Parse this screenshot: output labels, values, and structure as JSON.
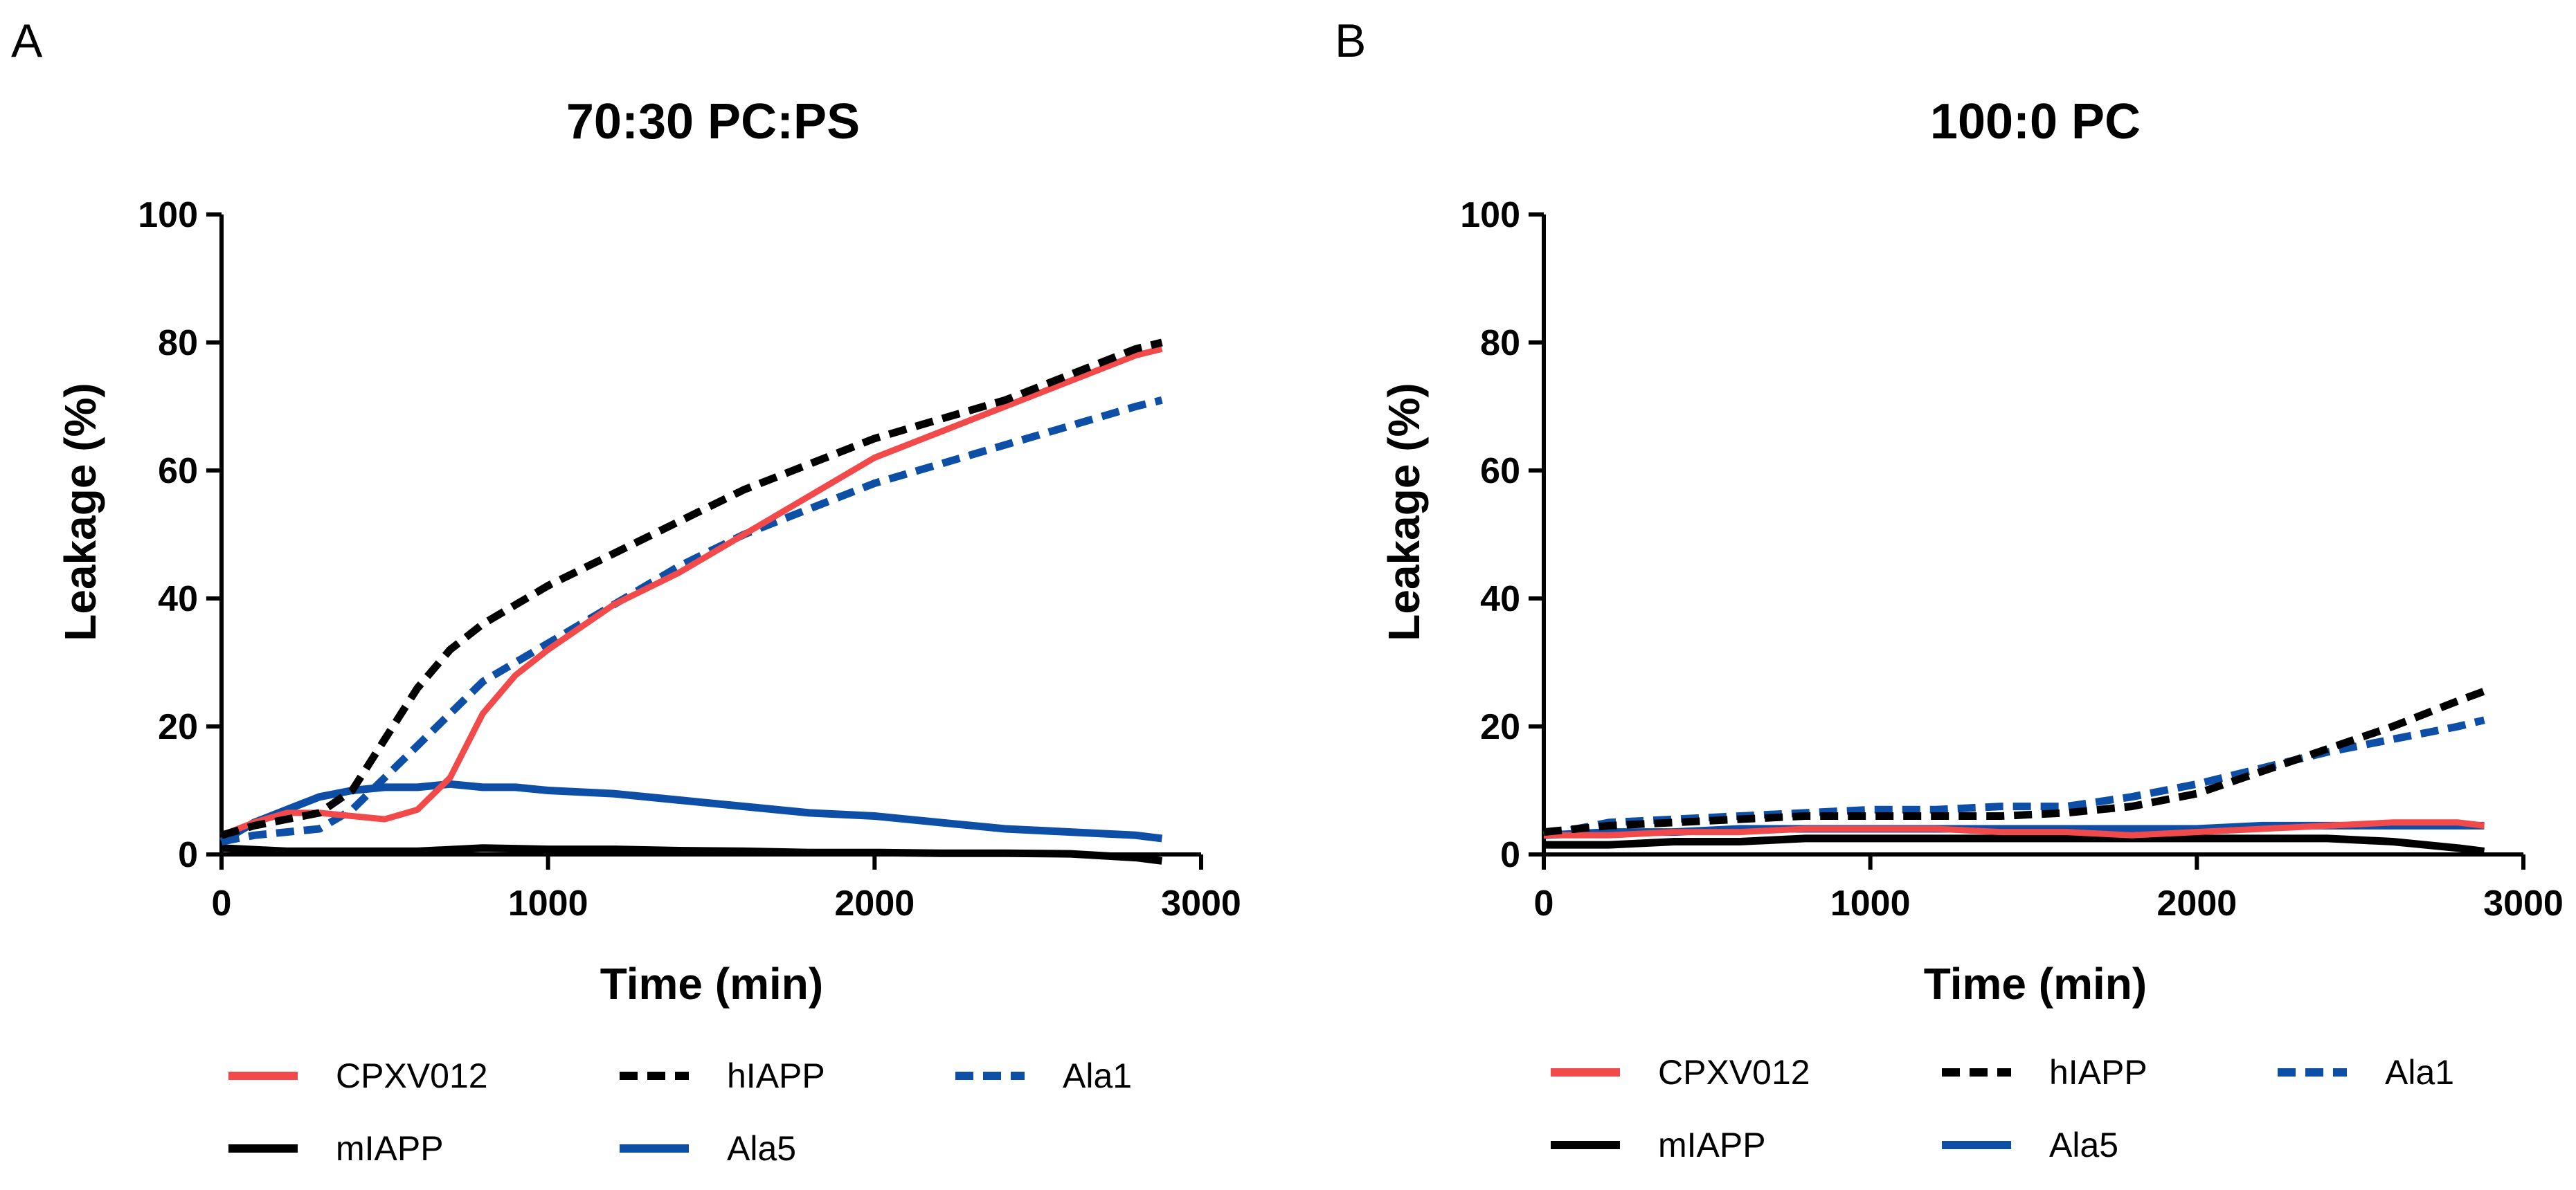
{
  "figure": {
    "panels": [
      {
        "letter": "A",
        "title": "70:30 PC:PS"
      },
      {
        "letter": "B",
        "title": "100:0 PC"
      }
    ]
  },
  "colors": {
    "CPXV012": "#f24a4a",
    "hIAPP": "#000000",
    "mIAPP": "#000000",
    "Ala1": "#0d4fa6",
    "Ala5": "#0d4fa6"
  },
  "chart_data": [
    {
      "type": "line",
      "panel": "A",
      "title": "70:30 PC:PS",
      "xlabel": "Time (min)",
      "ylabel": "Leakage (%)",
      "xlim": [
        0,
        3000
      ],
      "ylim": [
        0,
        100
      ],
      "xticks": [
        0,
        1000,
        2000,
        3000
      ],
      "yticks": [
        0,
        20,
        40,
        60,
        80,
        100
      ],
      "legend_position": "bottom",
      "series": [
        {
          "name": "CPXV012",
          "style": "solid",
          "x": [
            0,
            100,
            200,
            300,
            400,
            500,
            600,
            700,
            800,
            900,
            1000,
            1200,
            1400,
            1600,
            1800,
            2000,
            2200,
            2400,
            2600,
            2800,
            2880
          ],
          "y": [
            3,
            5,
            6.5,
            6.5,
            6,
            5.5,
            7,
            12,
            22,
            28,
            32,
            39,
            44,
            50,
            56,
            62,
            66,
            70,
            74,
            78,
            79
          ]
        },
        {
          "name": "hIAPP",
          "style": "dashed",
          "x": [
            0,
            100,
            200,
            300,
            400,
            500,
            600,
            700,
            800,
            900,
            1000,
            1200,
            1400,
            1600,
            1800,
            2000,
            2200,
            2400,
            2600,
            2800,
            2880
          ],
          "y": [
            3,
            4.5,
            5.5,
            6.5,
            10,
            18,
            26,
            32,
            36,
            39,
            42,
            47,
            52,
            57,
            61,
            65,
            68,
            71,
            75,
            79,
            80
          ]
        },
        {
          "name": "Ala1",
          "style": "dashed",
          "x": [
            0,
            100,
            200,
            300,
            400,
            500,
            600,
            700,
            800,
            900,
            1000,
            1200,
            1400,
            1600,
            1800,
            2000,
            2200,
            2400,
            2600,
            2800,
            2880
          ],
          "y": [
            2,
            3,
            3.5,
            4,
            7,
            12,
            17,
            22,
            27,
            30,
            33,
            39,
            45,
            50,
            54,
            58,
            61,
            64,
            67,
            70,
            71
          ]
        },
        {
          "name": "mIAPP",
          "style": "solid",
          "x": [
            0,
            200,
            400,
            600,
            800,
            1000,
            1200,
            1400,
            1600,
            1800,
            2000,
            2200,
            2400,
            2600,
            2800,
            2880
          ],
          "y": [
            1,
            0.5,
            0.5,
            0.5,
            1,
            0.8,
            0.8,
            0.6,
            0.5,
            0.3,
            0.3,
            0.2,
            0.2,
            0.1,
            -0.5,
            -1
          ]
        },
        {
          "name": "Ala5",
          "style": "solid",
          "x": [
            0,
            100,
            200,
            300,
            400,
            500,
            600,
            700,
            800,
            900,
            1000,
            1200,
            1400,
            1600,
            1800,
            2000,
            2200,
            2400,
            2600,
            2800,
            2880
          ],
          "y": [
            2,
            5,
            7,
            9,
            10,
            10.5,
            10.5,
            11,
            10.5,
            10.5,
            10,
            9.5,
            8.5,
            7.5,
            6.5,
            6,
            5,
            4,
            3.5,
            3,
            2.5
          ]
        }
      ]
    },
    {
      "type": "line",
      "panel": "B",
      "title": "100:0 PC",
      "xlabel": "Time (min)",
      "ylabel": "Leakage (%)",
      "xlim": [
        0,
        3000
      ],
      "ylim": [
        0,
        100
      ],
      "xticks": [
        0,
        1000,
        2000,
        3000
      ],
      "yticks": [
        0,
        20,
        40,
        60,
        80,
        100
      ],
      "legend_position": "bottom",
      "series": [
        {
          "name": "CPXV012",
          "style": "solid",
          "x": [
            0,
            200,
            400,
            600,
            800,
            1000,
            1200,
            1400,
            1600,
            1800,
            2000,
            2200,
            2400,
            2600,
            2800,
            2880
          ],
          "y": [
            3,
            3,
            3.5,
            3.5,
            4,
            4,
            4,
            3.5,
            3.5,
            3,
            3.5,
            4,
            4.5,
            5,
            5,
            4.5
          ]
        },
        {
          "name": "hIAPP",
          "style": "dashed",
          "x": [
            0,
            200,
            400,
            600,
            800,
            1000,
            1200,
            1400,
            1600,
            1800,
            2000,
            2200,
            2400,
            2600,
            2800,
            2880
          ],
          "y": [
            3.5,
            4.5,
            5,
            5.5,
            6,
            6,
            6,
            6,
            6.5,
            7.5,
            9.5,
            13,
            16.5,
            20,
            24,
            25.5
          ]
        },
        {
          "name": "Ala1",
          "style": "dashed",
          "x": [
            0,
            200,
            400,
            600,
            800,
            1000,
            1200,
            1400,
            1600,
            1800,
            2000,
            2200,
            2400,
            2600,
            2800,
            2880
          ],
          "y": [
            3,
            5,
            5.5,
            6,
            6.5,
            7,
            7,
            7.5,
            7.5,
            9,
            11,
            13.5,
            16,
            18,
            20,
            21
          ]
        },
        {
          "name": "mIAPP",
          "style": "solid",
          "x": [
            0,
            200,
            400,
            600,
            800,
            1000,
            1200,
            1400,
            1600,
            1800,
            2000,
            2200,
            2400,
            2600,
            2800,
            2880
          ],
          "y": [
            1.5,
            1.5,
            2,
            2,
            2.5,
            2.5,
            2.5,
            2.5,
            2.5,
            2.5,
            2.5,
            2.5,
            2.5,
            2,
            1,
            0.5
          ]
        },
        {
          "name": "Ala5",
          "style": "solid",
          "x": [
            0,
            200,
            400,
            600,
            800,
            1000,
            1200,
            1400,
            1600,
            1800,
            2000,
            2200,
            2400,
            2600,
            2800,
            2880
          ],
          "y": [
            3,
            3.5,
            3.5,
            4,
            4,
            4,
            4,
            4,
            4,
            4,
            4,
            4.5,
            4.5,
            4.5,
            4.5,
            4.5
          ]
        }
      ]
    }
  ],
  "legend": {
    "rows": [
      [
        "CPXV012",
        "hIAPP",
        "Ala1"
      ],
      [
        "mIAPP",
        "Ala5"
      ]
    ]
  }
}
